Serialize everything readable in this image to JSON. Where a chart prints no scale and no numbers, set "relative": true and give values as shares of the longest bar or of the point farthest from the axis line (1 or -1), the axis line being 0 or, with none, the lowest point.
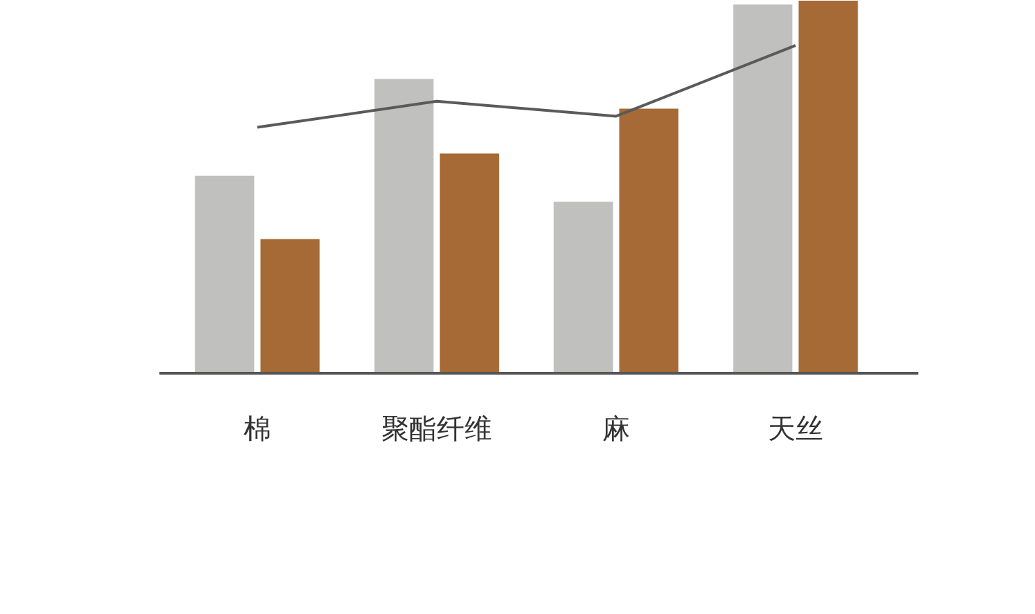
{
  "chart_data": {
    "type": "bar",
    "relative": true,
    "categories": [
      "棉",
      "聚酯纤维",
      "麻",
      "天丝"
    ],
    "series": [
      {
        "color": "#c0c0bf",
        "values": [
          0.53,
          0.79,
          0.46,
          0.99
        ]
      },
      {
        "color": "#a56a36",
        "values": [
          0.36,
          0.59,
          0.71,
          1.0
        ]
      },
      {
        "type": "line",
        "color": "#5a5a5a",
        "values": [
          0.66,
          0.73,
          0.69,
          0.88
        ]
      }
    ]
  }
}
